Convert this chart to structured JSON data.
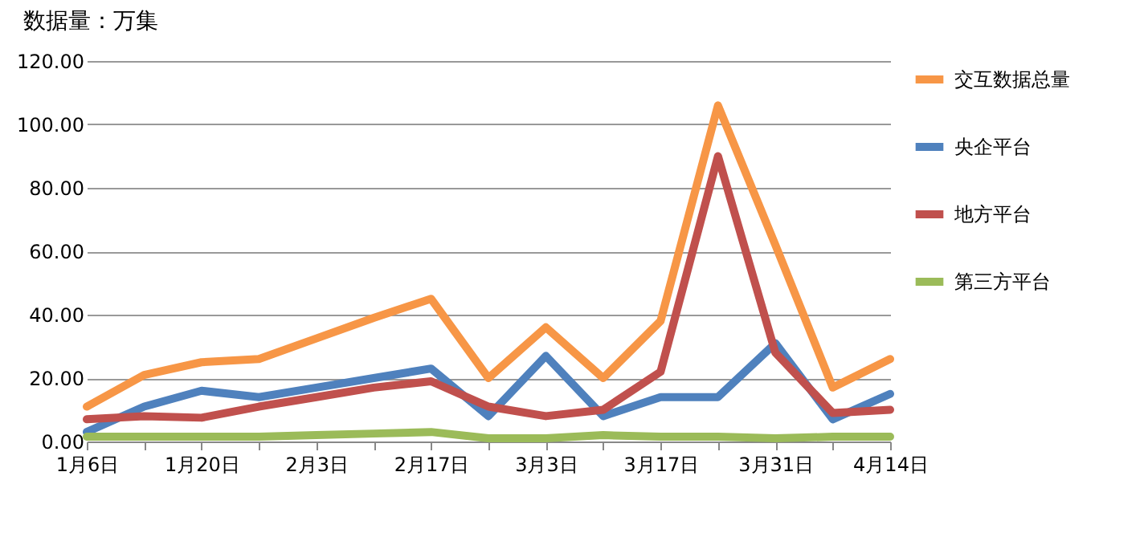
{
  "chart_data": {
    "type": "line",
    "ylabel": "数据量：万集",
    "categories": [
      "1月6日",
      null,
      "1月20日",
      null,
      "2月3日",
      null,
      "2月17日",
      null,
      "3月3日",
      null,
      "3月17日",
      null,
      "3月31日",
      null,
      "4月14日"
    ],
    "series": [
      {
        "name": "交互数据总量",
        "color": "#f79646",
        "values": [
          11,
          21,
          25,
          26,
          32.5,
          39,
          45,
          20,
          36,
          20,
          38,
          106,
          62,
          17,
          26
        ]
      },
      {
        "name": "央企平台",
        "color": "#4f81bd",
        "values": [
          3,
          11,
          16,
          14,
          17,
          20,
          23,
          8,
          27,
          8,
          14,
          14,
          31,
          7,
          15
        ]
      },
      {
        "name": "地方平台",
        "color": "#c0504d",
        "values": [
          7,
          8,
          7.5,
          11,
          14,
          17,
          19,
          11,
          8,
          10,
          22,
          90,
          28,
          9,
          10
        ]
      },
      {
        "name": "第三方平台",
        "color": "#9bbb59",
        "values": [
          1.5,
          1.5,
          1.5,
          1.5,
          2,
          2.5,
          3,
          1,
          1,
          2,
          1.5,
          1.5,
          1,
          1.5,
          1.5
        ]
      }
    ],
    "ylim": [
      0,
      120
    ],
    "yticks": [
      {
        "value": 0,
        "label": "0.00"
      },
      {
        "value": 20,
        "label": "20.00"
      },
      {
        "value": 40,
        "label": "40.00"
      },
      {
        "value": 60,
        "label": "60.00"
      },
      {
        "value": 80,
        "label": "80.00"
      },
      {
        "value": 100,
        "label": "100.00"
      },
      {
        "value": 120,
        "label": "120.00"
      }
    ],
    "grid": "y",
    "legend": "right",
    "marker": "none",
    "line_style": "solid"
  }
}
